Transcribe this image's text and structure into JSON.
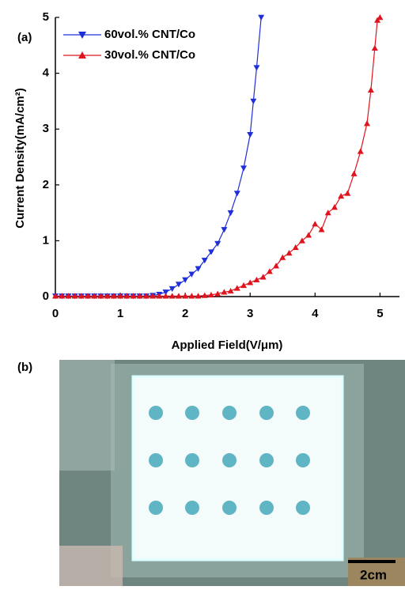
{
  "chart_data": {
    "type": "line",
    "panel_label": "(a)",
    "x_label": "Applied Field(V/μm)",
    "y_label": "Current Density(mA/cm²)",
    "xlim": [
      0,
      5.3
    ],
    "ylim": [
      0,
      5
    ],
    "xticks": [
      0,
      1,
      2,
      3,
      4,
      5
    ],
    "yticks": [
      0,
      1,
      2,
      3,
      4,
      5
    ],
    "legend": "upper left",
    "series": [
      {
        "name": "60vol.% CNT/Co",
        "color": "#1f2fd8",
        "marker": "down-triangle",
        "x": [
          0,
          0.1,
          0.2,
          0.3,
          0.4,
          0.5,
          0.6,
          0.7,
          0.8,
          0.9,
          1.0,
          1.1,
          1.2,
          1.3,
          1.4,
          1.5,
          1.6,
          1.7,
          1.8,
          1.9,
          2.0,
          2.1,
          2.2,
          2.3,
          2.4,
          2.5,
          2.6,
          2.7,
          2.8,
          2.9,
          3.0,
          3.05,
          3.1,
          3.17
        ],
        "values": [
          0.01,
          0.01,
          0.01,
          0.01,
          0.01,
          0.01,
          0.01,
          0.01,
          0.01,
          0.01,
          0.01,
          0.01,
          0.01,
          0.01,
          0.01,
          0.02,
          0.04,
          0.08,
          0.14,
          0.22,
          0.3,
          0.4,
          0.5,
          0.65,
          0.8,
          0.95,
          1.2,
          1.5,
          1.85,
          2.3,
          2.9,
          3.5,
          4.1,
          5.0
        ]
      },
      {
        "name": "30vol.% CNT/Co",
        "color": "#e0141e",
        "marker": "up-triangle",
        "x": [
          0,
          0.1,
          0.2,
          0.3,
          0.4,
          0.5,
          0.6,
          0.7,
          0.8,
          0.9,
          1.0,
          1.1,
          1.2,
          1.3,
          1.4,
          1.5,
          1.6,
          1.7,
          1.8,
          1.9,
          2.0,
          2.1,
          2.2,
          2.3,
          2.4,
          2.5,
          2.6,
          2.7,
          2.8,
          2.9,
          3.0,
          3.1,
          3.2,
          3.3,
          3.4,
          3.5,
          3.6,
          3.7,
          3.8,
          3.9,
          4.0,
          4.1,
          4.2,
          4.3,
          4.4,
          4.5,
          4.6,
          4.7,
          4.8,
          4.86,
          4.92,
          4.96,
          5.0
        ],
        "values": [
          0.01,
          0.01,
          0.01,
          0.01,
          0.01,
          0.01,
          0.01,
          0.01,
          0.01,
          0.01,
          0.01,
          0.01,
          0.01,
          0.01,
          0.01,
          0.01,
          0.01,
          0.01,
          0.01,
          0.01,
          0.01,
          0.01,
          0.01,
          0.02,
          0.03,
          0.05,
          0.08,
          0.1,
          0.15,
          0.2,
          0.25,
          0.3,
          0.35,
          0.45,
          0.55,
          0.7,
          0.78,
          0.88,
          1.0,
          1.1,
          1.3,
          1.2,
          1.5,
          1.6,
          1.8,
          1.85,
          2.2,
          2.6,
          3.1,
          3.7,
          4.45,
          4.95,
          5.0
        ]
      }
    ]
  },
  "photo": {
    "panel_label": "(b)",
    "scale_bar": "2cm"
  }
}
